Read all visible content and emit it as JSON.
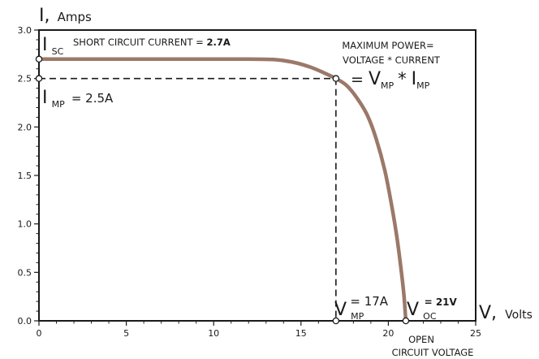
{
  "chart_data": {
    "type": "line",
    "title": "",
    "xlabel": {
      "symbol": "V,",
      "unit": "Volts"
    },
    "ylabel": {
      "symbol": "I,",
      "unit": "Amps"
    },
    "xlim": [
      0,
      25
    ],
    "ylim": [
      0,
      3.0
    ],
    "x_ticks": [
      0,
      5,
      10,
      15,
      20,
      25
    ],
    "y_ticks": [
      0.0,
      0.5,
      1.0,
      1.5,
      2.0,
      2.5,
      3.0
    ],
    "x_tick_labels": [
      "0",
      "5",
      "10",
      "15",
      "20",
      "25"
    ],
    "y_tick_labels": [
      "0.0",
      "0.5",
      "1.0",
      "1.5",
      "2.0",
      "2.5",
      "3.0"
    ],
    "grid": false,
    "curve_color": "#9b7868",
    "series": [
      {
        "points": [
          [
            0,
            2.7
          ],
          [
            6,
            2.7
          ],
          [
            12,
            2.7
          ],
          [
            13.5,
            2.695
          ],
          [
            14.5,
            2.67
          ],
          [
            15.5,
            2.62
          ],
          [
            16.3,
            2.56
          ],
          [
            17,
            2.5
          ],
          [
            17.6,
            2.43
          ],
          [
            18.2,
            2.3
          ],
          [
            18.8,
            2.12
          ],
          [
            19.3,
            1.88
          ],
          [
            19.8,
            1.55
          ],
          [
            20.2,
            1.18
          ],
          [
            20.5,
            0.85
          ],
          [
            20.75,
            0.5
          ],
          [
            20.9,
            0.25
          ],
          [
            21,
            0.0
          ]
        ]
      }
    ],
    "key_points": [
      {
        "id": "isc",
        "x": 0,
        "y": 2.7
      },
      {
        "id": "imp",
        "x": 0,
        "y": 2.5
      },
      {
        "id": "mpp",
        "x": 17,
        "y": 2.5
      },
      {
        "id": "vmp",
        "x": 17,
        "y": 0
      },
      {
        "id": "voc",
        "x": 21,
        "y": 0
      }
    ],
    "annotations": {
      "isc": {
        "main": "I",
        "sub": "SC",
        "text": "SHORT CIRCUIT  CURRENT = ",
        "bold": "2.7A"
      },
      "imp": {
        "main": "I",
        "sub": "MP",
        "text": "= 2.5A"
      },
      "max_power_line1": "MAXIMUM POWER=",
      "max_power_line2": "VOLTAGE * CURRENT",
      "max_power_eq": {
        "prefix": "= ",
        "v": "V",
        "v_sub": "MP",
        "mult": "*",
        "i": "I",
        "i_sub": "MP"
      },
      "vmp": {
        "main": "V",
        "sub": "MP",
        "text": "= 17A"
      },
      "voc": {
        "main": "V",
        "sub": "OC",
        "bold": "= 21V"
      },
      "open_circuit_line1": "OPEN",
      "open_circuit_line2": "CIRCUIT  VOLTAGE"
    }
  }
}
